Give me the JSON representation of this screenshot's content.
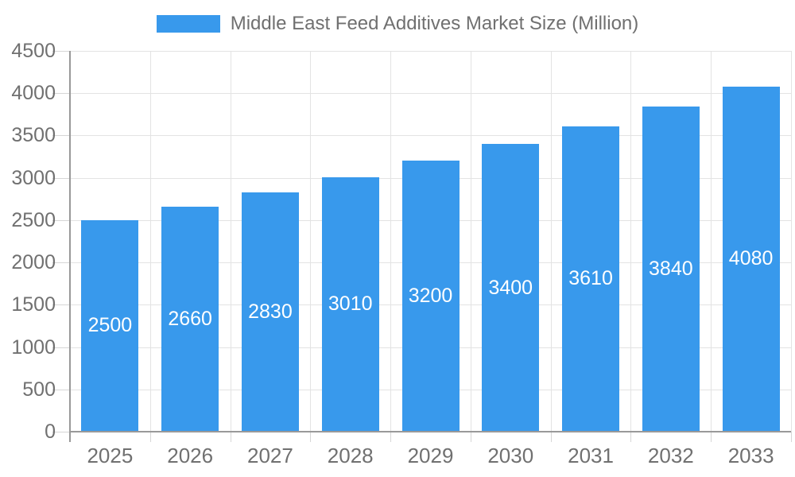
{
  "chart_data": {
    "type": "bar",
    "title": "Middle East Feed Additives Market Size (Million)",
    "categories": [
      "2025",
      "2026",
      "2027",
      "2028",
      "2029",
      "2030",
      "2031",
      "2032",
      "2033"
    ],
    "values": [
      2500,
      2660,
      2830,
      3010,
      3200,
      3400,
      3610,
      3840,
      4080
    ],
    "series": [
      {
        "name": "Middle East Feed Additives Market Size (Million)",
        "values": [
          2500,
          2660,
          2830,
          3010,
          3200,
          3400,
          3610,
          3840,
          4080
        ]
      }
    ],
    "xlabel": "",
    "ylabel": "",
    "ylim": [
      0,
      4500
    ],
    "yticks": [
      0,
      500,
      1000,
      1500,
      2000,
      2500,
      3000,
      3500,
      4000,
      4500
    ],
    "grid": "on",
    "legend_position": "top",
    "value_labels": "inside-center"
  },
  "colors": {
    "bar": "#3899ec",
    "bar_value_text": "#ffffff",
    "axis_text": "#707070",
    "title_text": "#707070",
    "gridline": "#e3e3e3",
    "axis_line": "#999999",
    "tick": "#d6d6d6",
    "background": "#ffffff"
  }
}
